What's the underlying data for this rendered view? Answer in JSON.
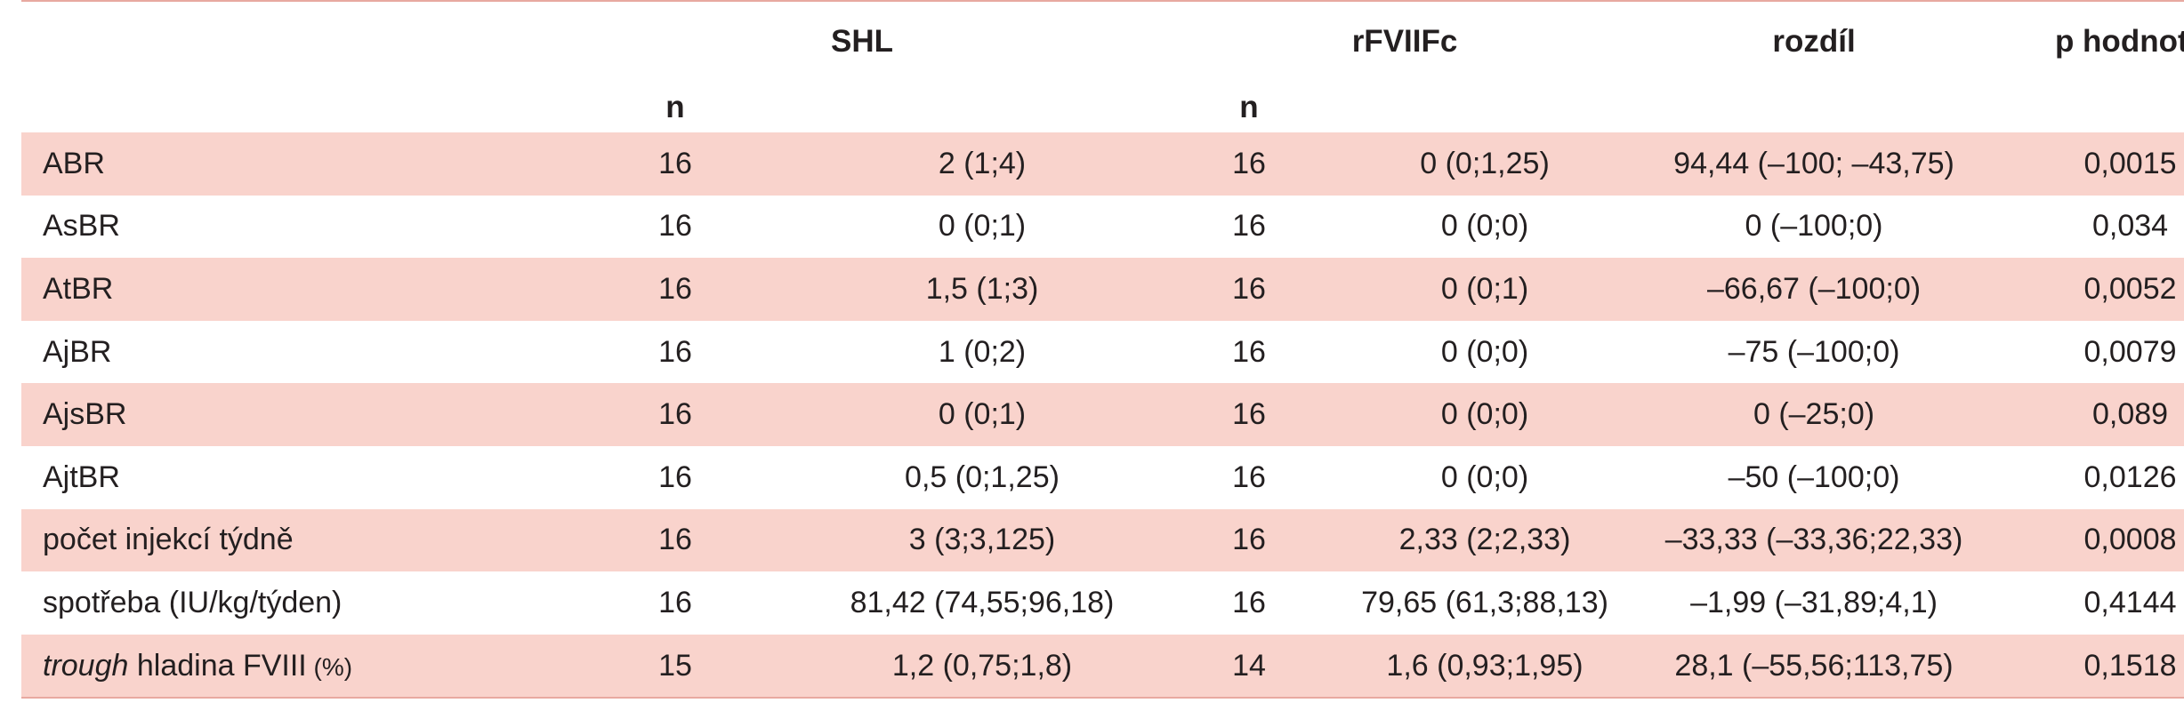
{
  "header": {
    "col_shl": "SHL",
    "col_rfviiifc": "rFVIIFc",
    "col_diff": "rozdíl",
    "col_p": "p hodnota",
    "n_label_1": "n",
    "n_label_2": "n"
  },
  "rows": [
    {
      "label": "ABR",
      "n1": "16",
      "shl": "2 (1;4)",
      "n2": "16",
      "rf": "0 (0;1,25)",
      "diff": "94,44 (–100; –43,75)",
      "p": "0,0015"
    },
    {
      "label": "AsBR",
      "n1": "16",
      "shl": "0 (0;1)",
      "n2": "16",
      "rf": "0 (0;0)",
      "diff": "0 (–100;0)",
      "p": "0,034"
    },
    {
      "label": "AtBR",
      "n1": "16",
      "shl": "1,5 (1;3)",
      "n2": "16",
      "rf": "0 (0;1)",
      "diff": "–66,67 (–100;0)",
      "p": "0,0052"
    },
    {
      "label": "AjBR",
      "n1": "16",
      "shl": "1 (0;2)",
      "n2": "16",
      "rf": "0 (0;0)",
      "diff": "–75 (–100;0)",
      "p": "0,0079"
    },
    {
      "label": "AjsBR",
      "n1": "16",
      "shl": "0 (0;1)",
      "n2": "16",
      "rf": "0 (0;0)",
      "diff": "0 (–25;0)",
      "p": "0,089"
    },
    {
      "label": "AjtBR",
      "n1": "16",
      "shl": "0,5 (0;1,25)",
      "n2": "16",
      "rf": "0 (0;0)",
      "diff": "–50 (–100;0)",
      "p": "0,0126"
    },
    {
      "label": "počet injekcí týdně",
      "n1": "16",
      "shl": "3 (3;3,125)",
      "n2": "16",
      "rf": "2,33 (2;2,33)",
      "diff": "–33,33 (–33,36;22,33)",
      "p": "0,0008"
    },
    {
      "label": "spotřeba (IU/kg/týden)",
      "n1": "16",
      "shl": "81,42 (74,55;96,18)",
      "n2": "16",
      "rf": "79,65 (61,3;88,13)",
      "diff": "–1,99 (–31,89;4,1)",
      "p": "0,4144"
    },
    {
      "label_italic": "trough",
      "label_rest": " hladina FVIII",
      "label_unit": " (%)",
      "n1": "15",
      "shl": "1,2 (0,75;1,8)",
      "n2": "14",
      "rf": "1,6 (0,93;1,95)",
      "diff": "28,1 (–55,56;113,75)",
      "p": "0,1518"
    }
  ]
}
